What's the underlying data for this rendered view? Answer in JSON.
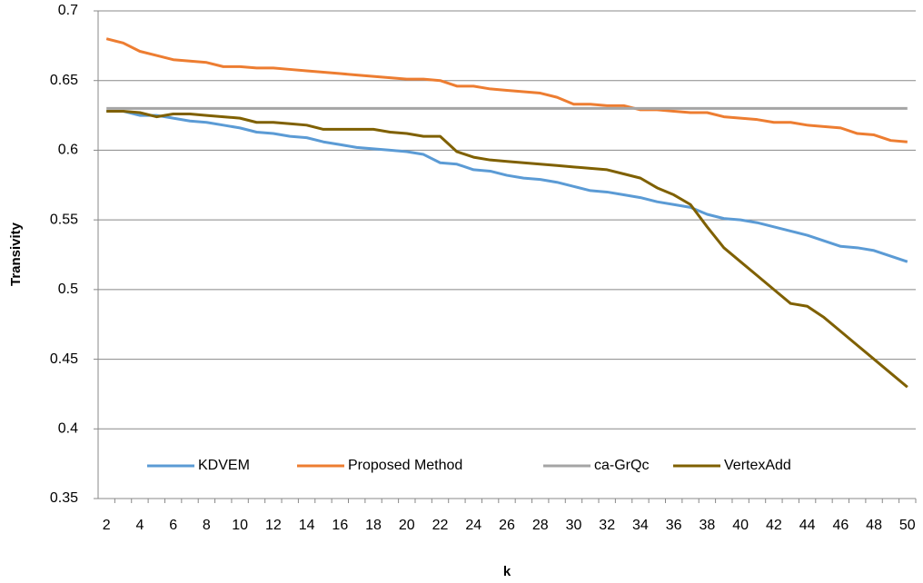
{
  "chart_data": {
    "type": "line",
    "x_label": "k",
    "y_label": "Transivity",
    "categories": [
      2,
      null,
      4,
      null,
      6,
      null,
      8,
      null,
      10,
      null,
      12,
      null,
      14,
      null,
      16,
      null,
      18,
      null,
      20,
      null,
      22,
      null,
      24,
      null,
      26,
      null,
      28,
      null,
      30,
      null,
      32,
      null,
      34,
      null,
      36,
      null,
      38,
      null,
      40,
      null,
      42,
      null,
      44,
      null,
      46,
      null,
      48,
      null,
      50
    ],
    "ylim": [
      0.35,
      0.7
    ],
    "yticks": [
      0.35,
      0.4,
      0.45,
      0.5,
      0.55,
      0.6,
      0.65,
      0.7
    ],
    "grid": true,
    "legend": "bottom",
    "series": [
      {
        "name": "KDVEM",
        "color": "#5b9bd5",
        "values": [
          0.628,
          0.628,
          0.625,
          0.625,
          0.623,
          0.621,
          0.62,
          0.618,
          0.616,
          0.613,
          0.612,
          0.61,
          0.609,
          0.606,
          0.604,
          0.602,
          0.601,
          0.6,
          0.599,
          0.597,
          0.591,
          0.59,
          0.586,
          0.585,
          0.582,
          0.58,
          0.579,
          0.577,
          0.574,
          0.571,
          0.57,
          0.568,
          0.566,
          0.563,
          0.561,
          0.559,
          0.554,
          0.551,
          0.55,
          0.548,
          0.545,
          0.542,
          0.539,
          0.535,
          0.531,
          0.53,
          0.528,
          0.524,
          0.52
        ]
      },
      {
        "name": "Proposed Method",
        "color": "#ed7d31",
        "values": [
          0.68,
          0.677,
          0.671,
          0.668,
          0.665,
          0.664,
          0.663,
          0.66,
          0.66,
          0.659,
          0.659,
          0.658,
          0.657,
          0.656,
          0.655,
          0.654,
          0.653,
          0.652,
          0.651,
          0.651,
          0.65,
          0.646,
          0.646,
          0.644,
          0.643,
          0.642,
          0.641,
          0.638,
          0.633,
          0.633,
          0.632,
          0.632,
          0.629,
          0.629,
          0.628,
          0.627,
          0.627,
          0.624,
          0.623,
          0.622,
          0.62,
          0.62,
          0.618,
          0.617,
          0.616,
          0.612,
          0.611,
          0.607,
          0.606
        ]
      },
      {
        "name": "ca-GrQc",
        "color": "#a5a5a5",
        "values": [
          0.63,
          0.63,
          0.63,
          0.63,
          0.63,
          0.63,
          0.63,
          0.63,
          0.63,
          0.63,
          0.63,
          0.63,
          0.63,
          0.63,
          0.63,
          0.63,
          0.63,
          0.63,
          0.63,
          0.63,
          0.63,
          0.63,
          0.63,
          0.63,
          0.63,
          0.63,
          0.63,
          0.63,
          0.63,
          0.63,
          0.63,
          0.63,
          0.63,
          0.63,
          0.63,
          0.63,
          0.63,
          0.63,
          0.63,
          0.63,
          0.63,
          0.63,
          0.63,
          0.63,
          0.63,
          0.63,
          0.63,
          0.63,
          0.63
        ]
      },
      {
        "name": "VertexAdd",
        "color": "#7f6000",
        "values": [
          0.628,
          0.628,
          0.627,
          0.624,
          0.626,
          0.626,
          0.625,
          0.624,
          0.623,
          0.62,
          0.62,
          0.619,
          0.618,
          0.615,
          0.615,
          0.615,
          0.615,
          0.613,
          0.612,
          0.61,
          0.61,
          0.599,
          0.595,
          0.593,
          0.592,
          0.591,
          0.59,
          0.589,
          0.588,
          0.587,
          0.586,
          0.583,
          0.58,
          0.573,
          0.568,
          0.561,
          0.545,
          0.53,
          0.52,
          0.51,
          0.5,
          0.49,
          0.488,
          0.48,
          0.47,
          0.46,
          0.45,
          0.44,
          0.43
        ]
      }
    ]
  }
}
